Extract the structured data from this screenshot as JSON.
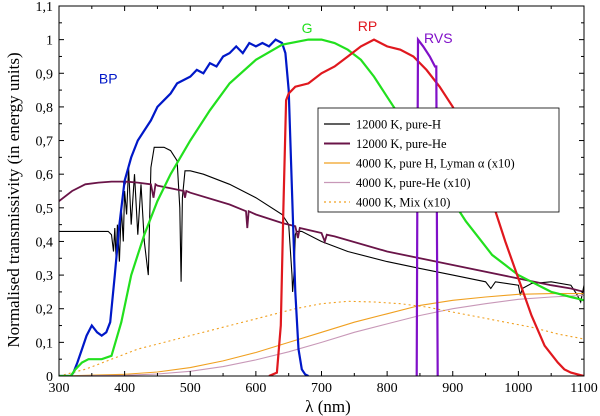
{
  "chart_data": {
    "type": "line",
    "title": "",
    "xlabel": "λ (nm)",
    "ylabel": "Normalised transmissivity (in energy units)",
    "xlim": [
      300,
      1100
    ],
    "ylim": [
      0,
      1.1
    ],
    "x_ticks": [
      300,
      400,
      500,
      600,
      700,
      800,
      900,
      1000,
      1100
    ],
    "x_tick_labels": [
      "300",
      "400",
      "500",
      "600",
      "700",
      "800",
      "900",
      "1000",
      "1100"
    ],
    "y_ticks": [
      0,
      0.1,
      0.2,
      0.3,
      0.4,
      0.5,
      0.6,
      0.7,
      0.8,
      0.9,
      1.0,
      1.1
    ],
    "y_tick_labels": [
      "0",
      "0,1",
      "0,2",
      "0,3",
      "0,4",
      "0,5",
      "0,6",
      "0,7",
      "0,8",
      "0,9",
      "1",
      "1,1"
    ],
    "passbands": [
      {
        "name": "BP",
        "color": "#0018c8",
        "label_at": [
          375,
          0.87
        ],
        "x": [
          300,
          318,
          322,
          328,
          335,
          342,
          350,
          358,
          365,
          372,
          378,
          385,
          392,
          400,
          410,
          420,
          430,
          440,
          450,
          460,
          470,
          480,
          490,
          500,
          510,
          520,
          530,
          540,
          550,
          560,
          570,
          580,
          590,
          600,
          610,
          620,
          630,
          640,
          645,
          650,
          655,
          660,
          665,
          670,
          675,
          680
        ],
        "y": [
          0,
          0,
          0.01,
          0.04,
          0.08,
          0.12,
          0.15,
          0.13,
          0.12,
          0.13,
          0.16,
          0.3,
          0.45,
          0.58,
          0.65,
          0.7,
          0.73,
          0.76,
          0.8,
          0.82,
          0.84,
          0.87,
          0.88,
          0.89,
          0.91,
          0.9,
          0.93,
          0.92,
          0.95,
          0.96,
          0.98,
          0.96,
          0.99,
          0.98,
          0.99,
          0.98,
          1.0,
          0.99,
          0.96,
          0.85,
          0.55,
          0.25,
          0.08,
          0.02,
          0.005,
          0
        ]
      },
      {
        "name": "G",
        "color": "#22e01e",
        "label_at": [
          678,
          1.02
        ],
        "x": [
          300,
          318,
          325,
          335,
          345,
          355,
          365,
          380,
          395,
          410,
          430,
          450,
          470,
          500,
          530,
          560,
          600,
          640,
          680,
          700,
          720,
          740,
          760,
          780,
          800,
          820,
          840,
          860,
          880,
          900,
          920,
          940,
          960,
          980,
          1000,
          1020,
          1040,
          1050,
          1060,
          1070,
          1080,
          1090,
          1100
        ],
        "y": [
          0,
          0,
          0.02,
          0.04,
          0.05,
          0.05,
          0.05,
          0.06,
          0.16,
          0.3,
          0.42,
          0.52,
          0.6,
          0.7,
          0.79,
          0.87,
          0.94,
          0.985,
          1.0,
          1.0,
          0.99,
          0.97,
          0.94,
          0.89,
          0.83,
          0.77,
          0.71,
          0.65,
          0.58,
          0.52,
          0.46,
          0.41,
          0.36,
          0.33,
          0.3,
          0.28,
          0.26,
          0.25,
          0.245,
          0.24,
          0.235,
          0.23,
          0.225
        ]
      },
      {
        "name": "RP",
        "color": "#e0181e",
        "label_at": [
          770,
          1.025
        ],
        "x": [
          620,
          632,
          638,
          642,
          646,
          650,
          660,
          680,
          700,
          720,
          740,
          760,
          780,
          800,
          820,
          840,
          860,
          880,
          900,
          920,
          940,
          960,
          980,
          1000,
          1020,
          1040,
          1060,
          1070,
          1080,
          1090,
          1100
        ],
        "y": [
          0,
          0.01,
          0.15,
          0.5,
          0.82,
          0.84,
          0.86,
          0.87,
          0.9,
          0.92,
          0.95,
          0.98,
          1.0,
          0.98,
          0.97,
          0.95,
          0.91,
          0.86,
          0.8,
          0.73,
          0.64,
          0.52,
          0.4,
          0.29,
          0.18,
          0.09,
          0.04,
          0.02,
          0.01,
          0.005,
          0
        ]
      },
      {
        "name": "RVS",
        "color": "#8010c8",
        "label_at": [
          878,
          0.99
        ],
        "x": [
          845,
          846,
          847,
          855,
          865,
          873,
          875,
          876,
          877
        ],
        "y": [
          0,
          0.5,
          1.0,
          0.98,
          0.95,
          0.92,
          0.92,
          0.4,
          0
        ]
      }
    ],
    "series": [
      {
        "name": "12000 K, pure-H",
        "color": "#000000",
        "dash": "",
        "x": [
          300,
          330,
          360,
          375,
          380,
          383,
          385,
          387,
          389,
          392,
          395,
          398,
          400,
          403,
          406,
          410,
          415,
          420,
          425,
          430,
          436,
          440,
          445,
          450,
          460,
          470,
          480,
          484,
          486,
          488,
          492,
          500,
          520,
          560,
          600,
          640,
          650,
          655,
          656,
          658,
          660,
          662,
          670,
          700,
          740,
          800,
          850,
          900,
          950,
          958,
          965,
          1000,
          1003,
          1006,
          1020,
          1050,
          1080,
          1090,
          1095,
          1100
        ],
        "y": [
          0.43,
          0.43,
          0.43,
          0.43,
          0.42,
          0.37,
          0.44,
          0.35,
          0.45,
          0.34,
          0.5,
          0.4,
          0.55,
          0.48,
          0.62,
          0.45,
          0.6,
          0.42,
          0.57,
          0.4,
          0.3,
          0.62,
          0.68,
          0.68,
          0.68,
          0.67,
          0.64,
          0.5,
          0.28,
          0.53,
          0.61,
          0.61,
          0.6,
          0.57,
          0.53,
          0.48,
          0.45,
          0.3,
          0.25,
          0.3,
          0.42,
          0.43,
          0.43,
          0.4,
          0.37,
          0.34,
          0.32,
          0.3,
          0.28,
          0.26,
          0.28,
          0.27,
          0.24,
          0.26,
          0.275,
          0.28,
          0.27,
          0.24,
          0.22,
          0.27
        ]
      },
      {
        "name": "12000 K, pure-He",
        "color": "#6a1448",
        "dash": "",
        "x": [
          300,
          320,
          340,
          360,
          380,
          398,
          400,
          402,
          420,
          440,
          444,
          447,
          450,
          470,
          490,
          492,
          494,
          500,
          560,
          585,
          587,
          589,
          600,
          640,
          660,
          664,
          667,
          700,
          705,
          708,
          720,
          800,
          900,
          1000,
          1050,
          1080,
          1100
        ],
        "y": [
          0.52,
          0.55,
          0.57,
          0.575,
          0.578,
          0.578,
          0.57,
          0.578,
          0.575,
          0.57,
          0.53,
          0.57,
          0.566,
          0.558,
          0.55,
          0.53,
          0.55,
          0.545,
          0.51,
          0.49,
          0.44,
          0.49,
          0.48,
          0.455,
          0.445,
          0.41,
          0.44,
          0.425,
          0.4,
          0.42,
          0.415,
          0.37,
          0.33,
          0.29,
          0.27,
          0.26,
          0.25
        ]
      },
      {
        "name": "4000 K, pure H, Lyman α (x10)",
        "color": "#f0a020",
        "dash": "",
        "x": [
          300,
          400,
          450,
          500,
          550,
          600,
          650,
          700,
          750,
          800,
          850,
          900,
          950,
          1000,
          1050,
          1100
        ],
        "y": [
          0,
          0.005,
          0.012,
          0.025,
          0.045,
          0.07,
          0.1,
          0.13,
          0.16,
          0.185,
          0.21,
          0.225,
          0.235,
          0.243,
          0.245,
          0.245
        ]
      },
      {
        "name": "4000 K, pure-He (x10)",
        "color": "#c898b8",
        "dash": "",
        "x": [
          300,
          400,
          450,
          500,
          550,
          600,
          650,
          700,
          750,
          800,
          850,
          900,
          950,
          1000,
          1050,
          1100
        ],
        "y": [
          0,
          0.002,
          0.006,
          0.014,
          0.028,
          0.048,
          0.072,
          0.1,
          0.13,
          0.155,
          0.18,
          0.2,
          0.215,
          0.228,
          0.235,
          0.24
        ]
      },
      {
        "name": "4000 K, Mix (x10)",
        "color": "#f0a020",
        "dash": "2 3",
        "x": [
          300,
          340,
          380,
          420,
          460,
          500,
          540,
          580,
          620,
          660,
          700,
          740,
          780,
          820,
          860,
          900,
          940,
          980,
          1020,
          1060,
          1100
        ],
        "y": [
          0,
          0.02,
          0.05,
          0.08,
          0.1,
          0.12,
          0.14,
          0.16,
          0.18,
          0.2,
          0.215,
          0.222,
          0.22,
          0.215,
          0.205,
          0.19,
          0.175,
          0.16,
          0.145,
          0.125,
          0.11
        ]
      }
    ]
  }
}
